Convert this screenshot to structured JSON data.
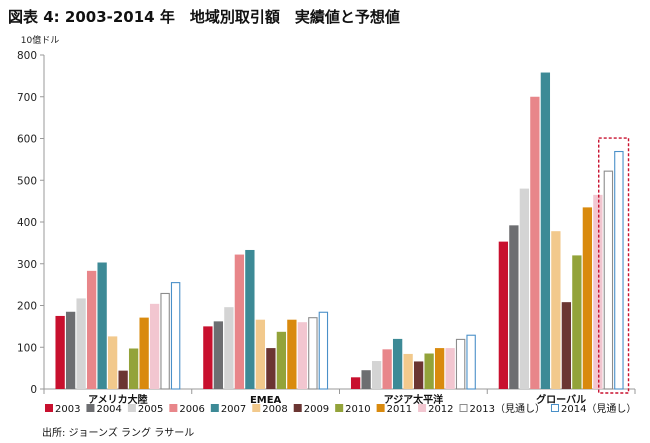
{
  "title": "図表 4: 2003-2014 年　地域別取引額　実績値と予想値",
  "source": "出所: ジョーンズ ラング ラサール",
  "chart_data": {
    "type": "bar",
    "ylabel": "10億ドル",
    "ylim": [
      0,
      800
    ],
    "yticks": [
      0,
      100,
      200,
      300,
      400,
      500,
      600,
      700,
      800
    ],
    "grid": false,
    "legend_position": "bottom",
    "categories": [
      "アメリカ大陸",
      "EMEA",
      "アジア太平洋",
      "グローバル"
    ],
    "series": [
      {
        "name": "2003",
        "color": "#C8102E",
        "style": "solid",
        "values": [
          175,
          150,
          28,
          353
        ]
      },
      {
        "name": "2004",
        "color": "#6D6E71",
        "style": "solid",
        "values": [
          185,
          162,
          45,
          392
        ]
      },
      {
        "name": "2005",
        "color": "#D4D4D4",
        "style": "solid",
        "values": [
          217,
          196,
          67,
          480
        ]
      },
      {
        "name": "2006",
        "color": "#E8868A",
        "style": "solid",
        "values": [
          283,
          322,
          95,
          700
        ]
      },
      {
        "name": "2007",
        "color": "#3D8A96",
        "style": "solid",
        "values": [
          303,
          333,
          120,
          758
        ]
      },
      {
        "name": "2008",
        "color": "#F2C98C",
        "style": "solid",
        "values": [
          126,
          166,
          84,
          378
        ]
      },
      {
        "name": "2009",
        "color": "#6B3532",
        "style": "solid",
        "values": [
          44,
          98,
          66,
          208
        ]
      },
      {
        "name": "2010",
        "color": "#93A33A",
        "style": "solid",
        "values": [
          97,
          137,
          85,
          320
        ]
      },
      {
        "name": "2011",
        "color": "#D98A0E",
        "style": "solid",
        "values": [
          171,
          166,
          98,
          435
        ]
      },
      {
        "name": "2012",
        "color": "#F2C6D0",
        "style": "solid",
        "values": [
          204,
          160,
          98,
          465
        ]
      },
      {
        "name": "2013（見通し）",
        "color": "#8C8C8C",
        "style": "outline",
        "values": [
          230,
          172,
          120,
          523
        ]
      },
      {
        "name": "2014（見通し）",
        "color": "#4A90C8",
        "style": "outline",
        "values": [
          256,
          185,
          130,
          570
        ]
      }
    ],
    "annotations": [
      {
        "type": "dashed-box",
        "color": "#C8102E",
        "category": "グローバル",
        "series": [
          "2013（見通し）",
          "2014（見通し）"
        ]
      }
    ]
  }
}
